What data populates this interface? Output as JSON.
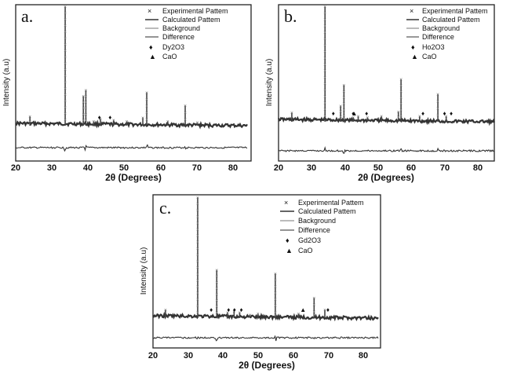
{
  "panels": [
    {
      "label": "a.",
      "legend": {
        "experimental": "Experimental Pattem",
        "calculated": "Calculated Pattem",
        "background": "Background",
        "difference": "Difference",
        "phase1_symbol": "♦",
        "phase1": "Dy2O3",
        "phase2_symbol": "▲",
        "phase2": "CaO"
      },
      "x_ticks": [
        "20",
        "30",
        "40",
        "50",
        "60",
        "70",
        "80"
      ],
      "ylabel": "Intensity (a.u)",
      "xlabel": "2θ (Degrees)"
    },
    {
      "label": "b.",
      "legend": {
        "experimental": "Experimental Pattem",
        "calculated": "Calculated Pattem",
        "background": "Background",
        "difference": "Difference",
        "phase1_symbol": "♦",
        "phase1": "Ho2O3",
        "phase2_symbol": "▲",
        "phase2": "CaO"
      },
      "x_ticks": [
        "20",
        "30",
        "40",
        "50",
        "60",
        "70",
        "80"
      ],
      "ylabel": "Intensity (a.u)",
      "xlabel": "2θ (Degrees)"
    },
    {
      "label": "c.",
      "legend": {
        "experimental": "Experimental Pattem",
        "calculated": "Calculated Pattem",
        "background": "Background",
        "difference": "Difference",
        "phase1_symbol": "♦",
        "phase1": "Gd2O3",
        "phase2_symbol": "▲",
        "phase2": "CaO"
      },
      "x_ticks": [
        "20",
        "30",
        "40",
        "50",
        "60",
        "70",
        "80"
      ],
      "ylabel": "Intensity (a.u)",
      "xlabel": "2θ (Degrees)"
    }
  ],
  "chart_data": [
    {
      "type": "line",
      "xlim": [
        20,
        85
      ],
      "peaks": [
        {
          "x": 24,
          "y": 0.08
        },
        {
          "x": 33.9,
          "y": 1.0
        },
        {
          "x": 39.0,
          "y": 0.25
        },
        {
          "x": 39.7,
          "y": 0.3
        },
        {
          "x": 41.9,
          "y": 0.04
        },
        {
          "x": 43.8,
          "y": 0.06
        },
        {
          "x": 47.5,
          "y": 0.05
        },
        {
          "x": 51.2,
          "y": 0.04
        },
        {
          "x": 55.7,
          "y": 0.07
        },
        {
          "x": 56.8,
          "y": 0.28
        },
        {
          "x": 62.7,
          "y": 0.04
        },
        {
          "x": 67.6,
          "y": 0.17
        },
        {
          "x": 71.0,
          "y": 0.03
        }
      ],
      "markers": [
        {
          "x": 43.5,
          "symbol": "♦"
        },
        {
          "x": 46.5,
          "symbol": "♦"
        }
      ]
    },
    {
      "type": "line",
      "xlim": [
        20,
        85
      ],
      "peaks": [
        {
          "x": 24,
          "y": 0.08
        },
        {
          "x": 34.0,
          "y": 1.0
        },
        {
          "x": 38.7,
          "y": 0.14
        },
        {
          "x": 39.7,
          "y": 0.32
        },
        {
          "x": 42.5,
          "y": 0.04
        },
        {
          "x": 44.0,
          "y": 0.05
        },
        {
          "x": 46.8,
          "y": 0.04
        },
        {
          "x": 51.0,
          "y": 0.05
        },
        {
          "x": 56.1,
          "y": 0.09
        },
        {
          "x": 56.9,
          "y": 0.37
        },
        {
          "x": 62.5,
          "y": 0.05
        },
        {
          "x": 68.0,
          "y": 0.24
        },
        {
          "x": 70.5,
          "y": 0.05
        }
      ],
      "markers": [
        {
          "x": 36.5,
          "symbol": "♦"
        },
        {
          "x": 42.5,
          "symbol": "♦"
        },
        {
          "x": 46.5,
          "symbol": "♦"
        },
        {
          "x": 42.8,
          "symbol": "▲"
        },
        {
          "x": 63.5,
          "symbol": "♦"
        },
        {
          "x": 70.0,
          "symbol": "♦"
        },
        {
          "x": 72.0,
          "symbol": "♦"
        }
      ]
    },
    {
      "type": "line",
      "xlim": [
        20,
        85
      ],
      "peaks": [
        {
          "x": 23.6,
          "y": 0.07
        },
        {
          "x": 32.9,
          "y": 1.0
        },
        {
          "x": 38.4,
          "y": 0.4
        },
        {
          "x": 41.5,
          "y": 0.05
        },
        {
          "x": 43.4,
          "y": 0.06
        },
        {
          "x": 45.0,
          "y": 0.05
        },
        {
          "x": 48.0,
          "y": 0.03
        },
        {
          "x": 50.3,
          "y": 0.04
        },
        {
          "x": 55.3,
          "y": 0.37
        },
        {
          "x": 62.0,
          "y": 0.04
        },
        {
          "x": 66.5,
          "y": 0.17
        },
        {
          "x": 69.6,
          "y": 0.07
        }
      ],
      "markers": [
        {
          "x": 36.8,
          "symbol": "♦"
        },
        {
          "x": 41.8,
          "symbol": "♦"
        },
        {
          "x": 43.5,
          "symbol": "♦"
        },
        {
          "x": 45.5,
          "symbol": "♦"
        },
        {
          "x": 63.3,
          "symbol": "▲"
        },
        {
          "x": 70.5,
          "symbol": "♦"
        }
      ]
    }
  ]
}
